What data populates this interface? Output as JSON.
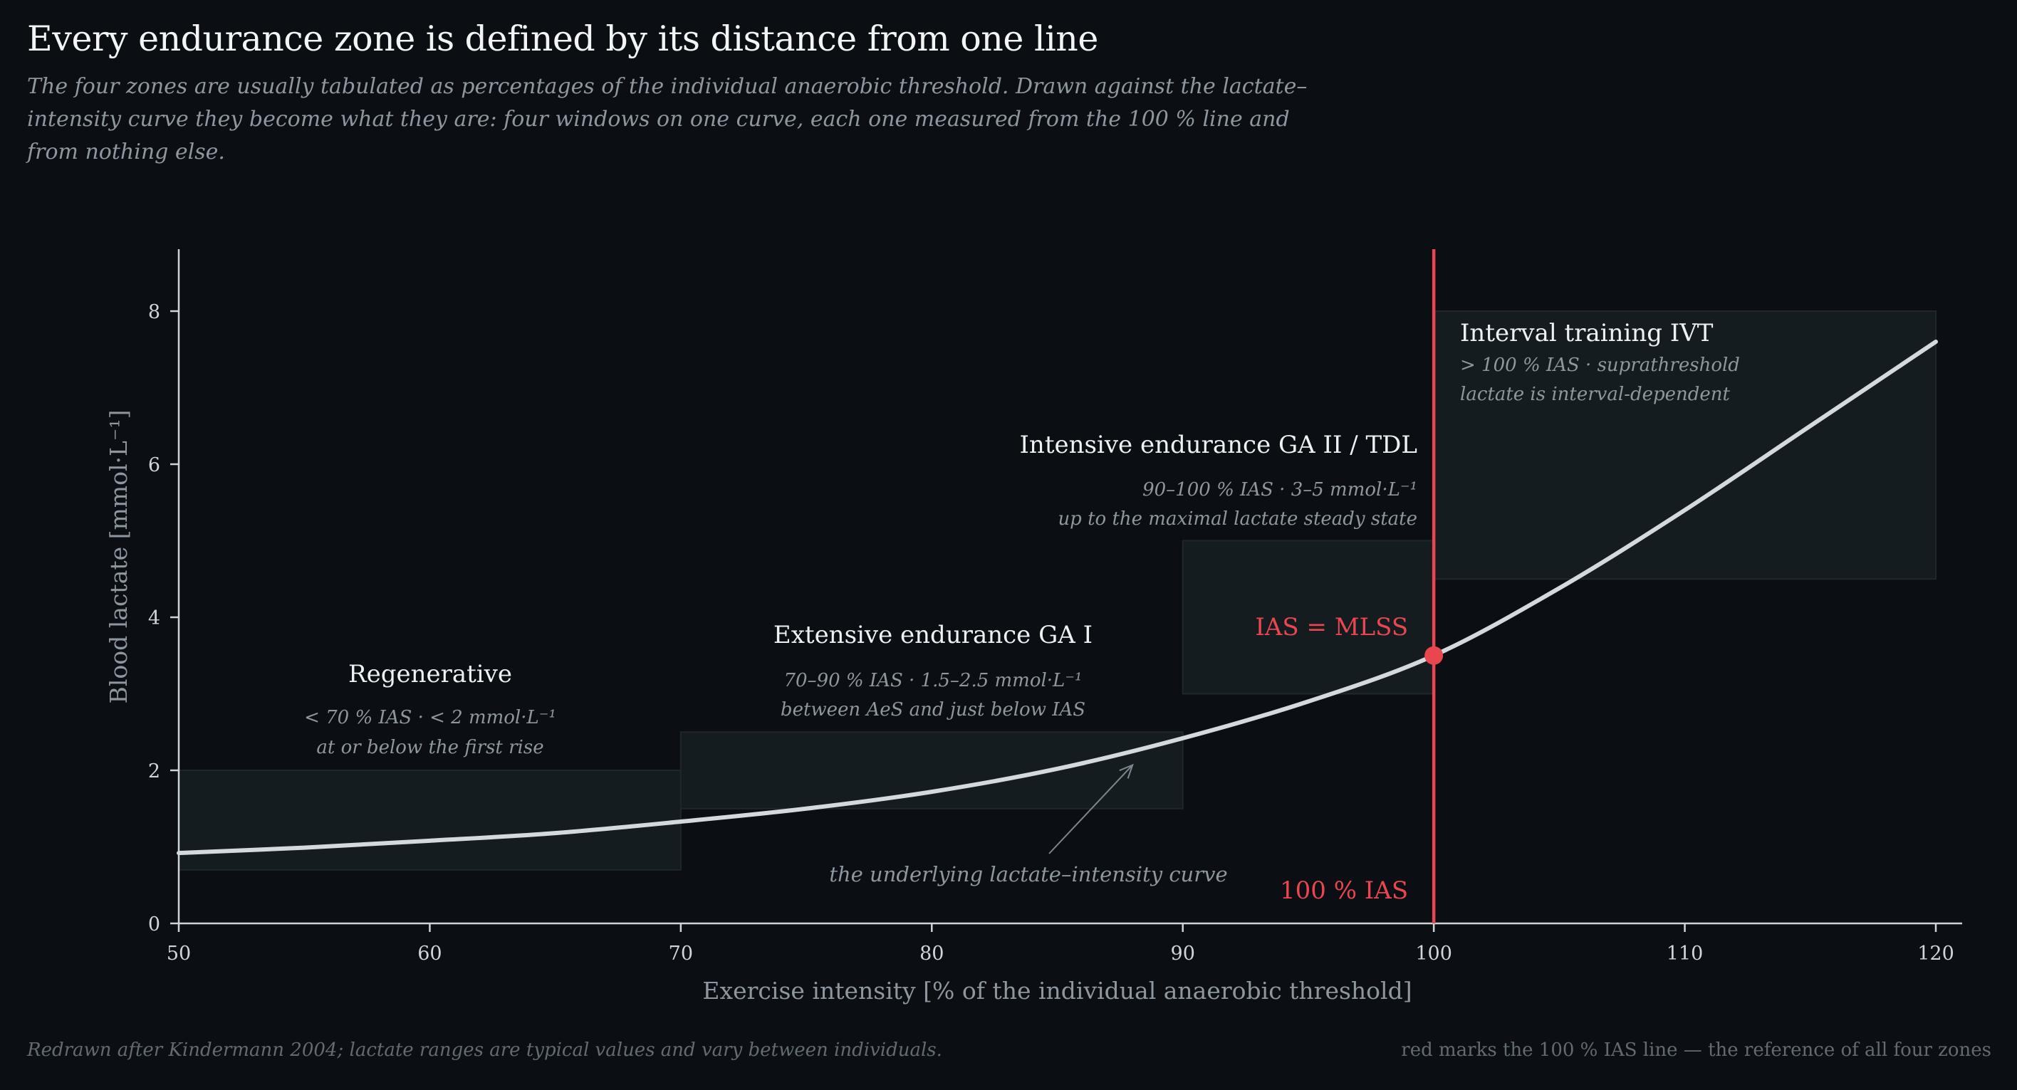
{
  "header": {
    "title": "Every endurance zone is defined by its distance from one line",
    "subtitle": "The four zones are usually tabulated as percentages of the individual anaerobic threshold. Drawn against the lactate–intensity curve they become what they are: four windows on one curve, each one measured from the 100 % line and from nothing else."
  },
  "footer": {
    "source": "Redrawn after Kindermann 2004; lactate ranges are typical values and vary between individuals.",
    "legend_note": "red marks the 100 % IAS line — the reference of all four zones"
  },
  "colors": {
    "background": "#0b0f13",
    "curve": "#d3d9de",
    "accent_red": "#e8474f",
    "zone_fill": "#151c20",
    "axis": "#cfd4d8",
    "muted_text": "#8e979f"
  },
  "chart_data": {
    "type": "line",
    "title": "Every endurance zone is defined by its distance from one line",
    "xlabel": "Exercise intensity  [% of the individual anaerobic threshold]",
    "ylabel": "Blood lactate  [mmol·L⁻¹]",
    "xlim": [
      50,
      120
    ],
    "ylim": [
      0,
      8.8
    ],
    "x_ticks": [
      50,
      60,
      70,
      80,
      90,
      100,
      110,
      120
    ],
    "y_ticks": [
      0,
      2,
      4,
      6,
      8
    ],
    "grid": false,
    "series": [
      {
        "x": [
          50,
          55,
          60,
          65,
          70,
          75,
          80,
          85,
          90,
          95,
          100,
          105,
          110,
          115,
          120
        ],
        "y": [
          0.92,
          0.99,
          1.08,
          1.18,
          1.33,
          1.5,
          1.72,
          2.02,
          2.42,
          2.9,
          3.5,
          4.38,
          5.4,
          6.5,
          7.6
        ]
      }
    ],
    "zones": [
      {
        "name": "Regenerative",
        "detail1": "< 70 % IAS   ·   < 2 mmol·L⁻¹",
        "detail2": "at or below the first rise",
        "x": [
          50,
          70
        ],
        "y": [
          0.7,
          2.0
        ]
      },
      {
        "name": "Extensive endurance  GA I",
        "detail1": "70–90 % IAS   ·   1.5–2.5 mmol·L⁻¹",
        "detail2": "between AeS and just below IAS",
        "x": [
          70,
          90
        ],
        "y": [
          1.5,
          2.5
        ]
      },
      {
        "name": "Intensive endurance  GA II / TDL",
        "detail1": "90–100 % IAS   ·   3–5 mmol·L⁻¹",
        "detail2": "up to the maximal lactate steady state",
        "x": [
          90,
          100
        ],
        "y": [
          3.0,
          5.0
        ]
      },
      {
        "name": "Interval training  IVT",
        "detail1": "> 100 % IAS   ·   suprathreshold",
        "detail2": "lactate is interval-dependent",
        "x": [
          100,
          120
        ],
        "y": [
          4.5,
          8.0
        ]
      }
    ],
    "reference_line": {
      "x": 100,
      "label": "100 % IAS"
    },
    "threshold_point": {
      "x": 100,
      "y": 3.5,
      "label": "IAS = MLSS"
    },
    "annotations": [
      {
        "text": "the underlying lactate–intensity curve",
        "target": [
          88,
          2.07
        ]
      }
    ]
  }
}
